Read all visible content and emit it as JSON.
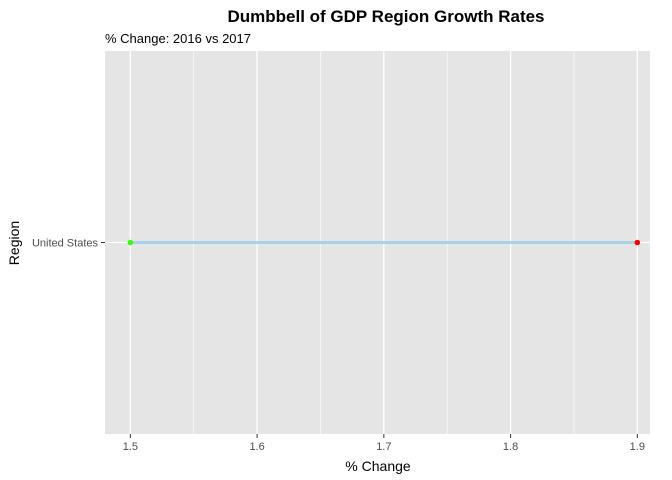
{
  "chart_data": {
    "type": "dumbbell",
    "title": "Dumbbell of GDP Region Growth Rates",
    "subtitle": "% Change: 2016 vs 2017",
    "xlabel": "% Change",
    "ylabel": "Region",
    "xlim": [
      1.48,
      1.91
    ],
    "x_ticks": [
      "1.5",
      "1.6",
      "1.7",
      "1.8",
      "1.9"
    ],
    "categories": [
      "United States"
    ],
    "points": [
      {
        "category": "United States",
        "x_start": 1.5,
        "x_end": 1.9
      }
    ],
    "grid": true,
    "legend": "none",
    "colors": {
      "panel": "#e5e5e5",
      "grid": "#ffffff",
      "segment": "#a6d4e6",
      "start_point": "#33ff00",
      "end_point": "#ff0000"
    }
  }
}
